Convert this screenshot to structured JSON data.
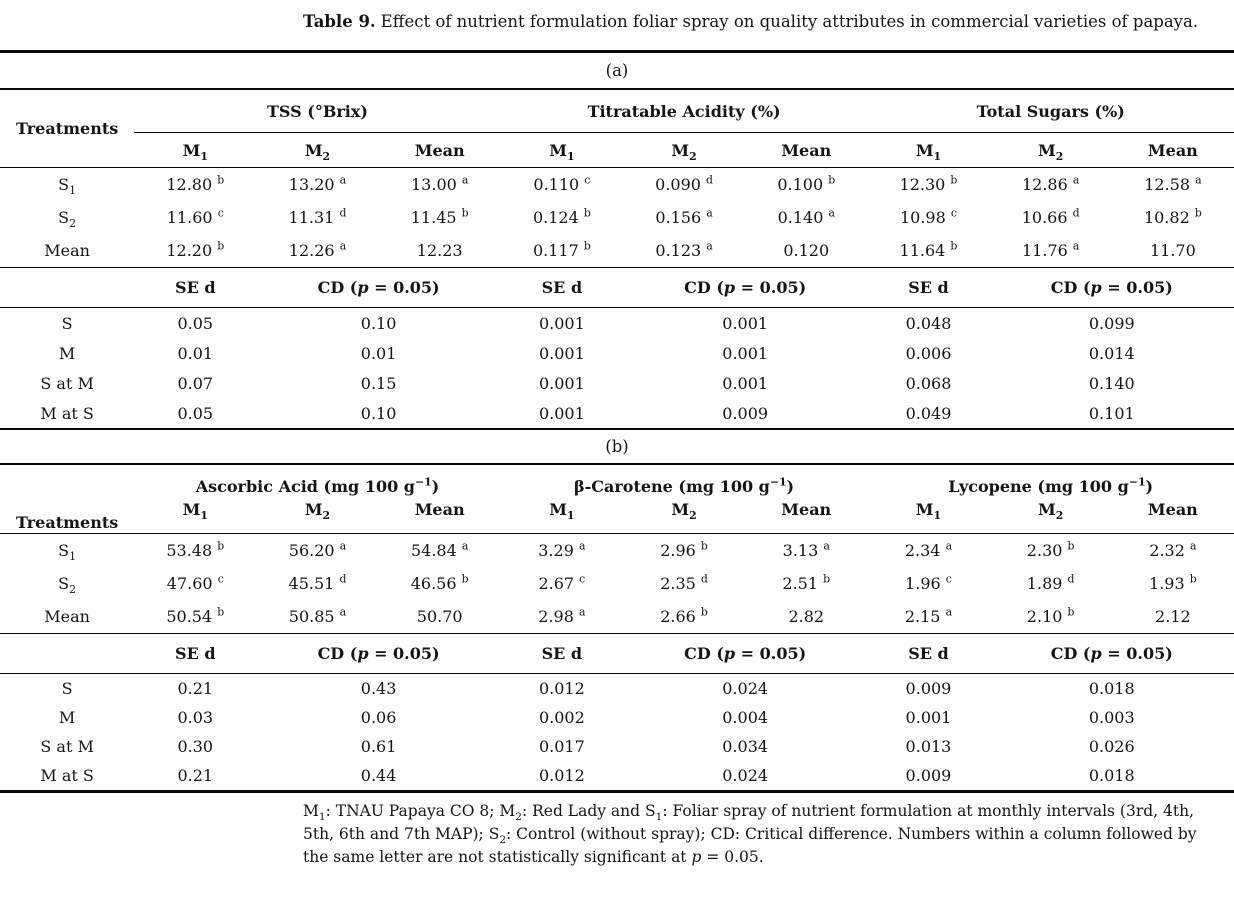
{
  "title": {
    "label": "Table 9.",
    "text": "Effect of nutrient formulation foliar spray on quality attributes in commercial varieties of papaya."
  },
  "sections": [
    {
      "label": "(a)",
      "treatments_header": "Treatments",
      "header_rule": true,
      "groups": [
        {
          "title": "TSS (°Brix)",
          "subcols": [
            "M_{1}",
            "M_{2}",
            "Mean"
          ]
        },
        {
          "title": "Titratable Acidity (%)",
          "subcols": [
            "M_{1}",
            "M_{2}",
            "Mean"
          ]
        },
        {
          "title": "Total Sugars (%)",
          "subcols": [
            "M_{1}",
            "M_{2}",
            "Mean"
          ]
        }
      ],
      "rows": [
        {
          "label": "S_{1}",
          "values": [
            "12.80 ^{b}",
            "13.20 ^{a}",
            "13.00 ^{a}",
            "0.110 ^{c}",
            "0.090 ^{d}",
            "0.100 ^{b}",
            "12.30 ^{b}",
            "12.86 ^{a}",
            "12.58 ^{a}"
          ]
        },
        {
          "label": "S_{2}",
          "values": [
            "11.60 ^{c}",
            "11.31 ^{d}",
            "11.45 ^{b}",
            "0.124 ^{b}",
            "0.156 ^{a}",
            "0.140 ^{a}",
            "10.98 ^{c}",
            "10.66 ^{d}",
            "10.82 ^{b}"
          ]
        },
        {
          "label": "Mean",
          "values": [
            "12.20 ^{b}",
            "12.26 ^{a}",
            "12.23",
            "0.117 ^{b}",
            "0.123 ^{a}",
            "0.120",
            "11.64 ^{b}",
            "11.76 ^{a}",
            "11.70"
          ]
        }
      ],
      "stats_se_label": "SE d",
      "stats_cd_label": "CD (*p* = 0.05)",
      "stats_rows": [
        {
          "label": "S",
          "values": [
            "0.05",
            "0.10",
            "0.001",
            "0.001",
            "0.048",
            "0.099"
          ]
        },
        {
          "label": "M",
          "values": [
            "0.01",
            "0.01",
            "0.001",
            "0.001",
            "0.006",
            "0.014"
          ]
        },
        {
          "label": "S at M",
          "values": [
            "0.07",
            "0.15",
            "0.001",
            "0.001",
            "0.068",
            "0.140"
          ]
        },
        {
          "label": "M at S",
          "values": [
            "0.05",
            "0.10",
            "0.001",
            "0.009",
            "0.049",
            "0.101"
          ]
        }
      ]
    },
    {
      "label": "(b)",
      "treatments_header": "Treatments",
      "header_rule": false,
      "groups": [
        {
          "title": "Ascorbic Acid (mg 100 g^{−1})",
          "subcols": [
            "M_{1}",
            "M_{2}",
            "Mean"
          ]
        },
        {
          "title": "β-Carotene (mg 100 g^{−1})",
          "subcols": [
            "M_{1}",
            "M_{2}",
            "Mean"
          ]
        },
        {
          "title": "Lycopene (mg 100 g^{−1})",
          "subcols": [
            "M_{1}",
            "M_{2}",
            "Mean"
          ]
        }
      ],
      "rows": [
        {
          "label": "S_{1}",
          "values": [
            "53.48 ^{b}",
            "56.20 ^{a}",
            "54.84 ^{a}",
            "3.29 ^{a}",
            "2.96 ^{b}",
            "3.13 ^{a}",
            "2.34 ^{a}",
            "2.30 ^{b}",
            "2.32 ^{a}"
          ]
        },
        {
          "label": "S_{2}",
          "values": [
            "47.60 ^{c}",
            "45.51 ^{d}",
            "46.56 ^{b}",
            "2.67 ^{c}",
            "2.35 ^{d}",
            "2.51 ^{b}",
            "1.96 ^{c}",
            "1.89 ^{d}",
            "1.93 ^{b}"
          ]
        },
        {
          "label": "Mean",
          "values": [
            "50.54 ^{b}",
            "50.85 ^{a}",
            "50.70",
            "2.98 ^{a}",
            "2.66 ^{b}",
            "2.82",
            "2.15 ^{a}",
            "2.10 ^{b}",
            "2.12"
          ]
        }
      ],
      "stats_se_label": "SE d",
      "stats_cd_label": "CD (*p* = 0.05)",
      "stats_rows": [
        {
          "label": "S",
          "values": [
            "0.21",
            "0.43",
            "0.012",
            "0.024",
            "0.009",
            "0.018"
          ]
        },
        {
          "label": "M",
          "values": [
            "0.03",
            "0.06",
            "0.002",
            "0.004",
            "0.001",
            "0.003"
          ]
        },
        {
          "label": "S at M",
          "values": [
            "0.30",
            "0.61",
            "0.017",
            "0.034",
            "0.013",
            "0.026"
          ]
        },
        {
          "label": "M at S",
          "values": [
            "0.21",
            "0.44",
            "0.012",
            "0.024",
            "0.009",
            "0.018"
          ]
        }
      ]
    }
  ],
  "footnote": "M_{1}: TNAU Papaya CO 8; M_{2}: Red Lady and S_{1}: Foliar spray of nutrient formulation at monthly intervals (3rd, 4th, 5th, 6th and 7th MAP); S_{2}: Control (without spray); CD: Critical difference. Numbers within a column followed by the same letter are not statistically significant at *p* = 0.05."
}
